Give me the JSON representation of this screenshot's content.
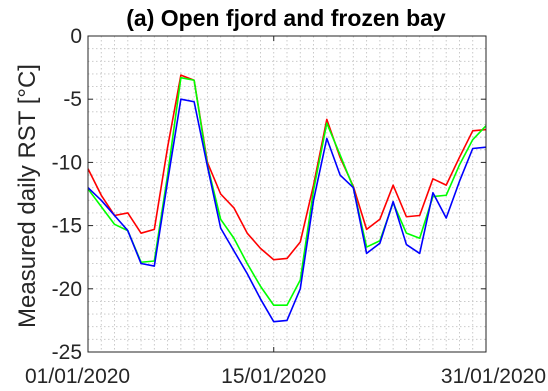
{
  "chart_data": {
    "type": "line",
    "title": "(a) Open fjord and frozen bay",
    "xlabel": "",
    "ylabel": "Measured daily RST [°C]",
    "ylim": [
      -25,
      0
    ],
    "xlim": [
      "2020-01-01",
      "2020-01-31"
    ],
    "yticks": [
      0,
      -5,
      -10,
      -15,
      -20,
      -25
    ],
    "ytick_labels": [
      "0",
      "-5",
      "-10",
      "-15",
      "-20",
      "-25"
    ],
    "xtick_labels": [
      {
        "date": "2020-01-01",
        "label": "01/01/2020"
      },
      {
        "date": "2020-01-15",
        "label": "15/01/2020"
      },
      {
        "date": "2020-01-31",
        "label": "31/01/2020"
      }
    ],
    "grid": {
      "major": true,
      "minor": true,
      "style": "dotted"
    },
    "x": [
      "2020-01-01",
      "2020-01-02",
      "2020-01-03",
      "2020-01-04",
      "2020-01-05",
      "2020-01-06",
      "2020-01-07",
      "2020-01-08",
      "2020-01-09",
      "2020-01-10",
      "2020-01-11",
      "2020-01-12",
      "2020-01-13",
      "2020-01-14",
      "2020-01-15",
      "2020-01-16",
      "2020-01-17",
      "2020-01-18",
      "2020-01-19",
      "2020-01-20",
      "2020-01-21",
      "2020-01-22",
      "2020-01-23",
      "2020-01-24",
      "2020-01-25",
      "2020-01-26",
      "2020-01-27",
      "2020-01-28",
      "2020-01-29",
      "2020-01-30",
      "2020-01-31"
    ],
    "series": [
      {
        "color": "#ff0000",
        "values": [
          -10.5,
          -12.6,
          -14.2,
          -14.0,
          -15.6,
          -15.3,
          -8.8,
          -3.1,
          -3.5,
          -10.0,
          -12.5,
          -13.6,
          -15.6,
          -16.8,
          -17.7,
          -17.6,
          -16.3,
          -11.8,
          -6.6,
          -9.6,
          -11.9,
          -15.3,
          -14.5,
          -11.8,
          -14.3,
          -14.2,
          -11.3,
          -11.8,
          -9.6,
          -7.5,
          -7.4
        ]
      },
      {
        "color": "#00ff00",
        "values": [
          -12.1,
          -13.5,
          -14.9,
          -15.4,
          -17.9,
          -17.8,
          -11.0,
          -3.3,
          -3.5,
          -10.2,
          -14.5,
          -16.0,
          -18.0,
          -19.8,
          -21.3,
          -21.3,
          -19.3,
          -12.2,
          -6.9,
          -9.4,
          -12.0,
          -16.7,
          -16.2,
          -13.2,
          -15.6,
          -16.0,
          -12.7,
          -12.6,
          -10.2,
          -8.2,
          -7.1
        ]
      },
      {
        "color": "#0000ff",
        "values": [
          -12.0,
          -13.0,
          -14.2,
          -15.4,
          -18.0,
          -18.2,
          -11.5,
          -5.0,
          -5.2,
          -10.3,
          -15.2,
          -17.0,
          -18.8,
          -20.8,
          -22.6,
          -22.5,
          -20.0,
          -13.0,
          -8.1,
          -11.0,
          -12.0,
          -17.2,
          -16.4,
          -13.1,
          -16.5,
          -17.2,
          -12.4,
          -14.4,
          -11.5,
          -8.9,
          -8.8
        ]
      }
    ]
  }
}
